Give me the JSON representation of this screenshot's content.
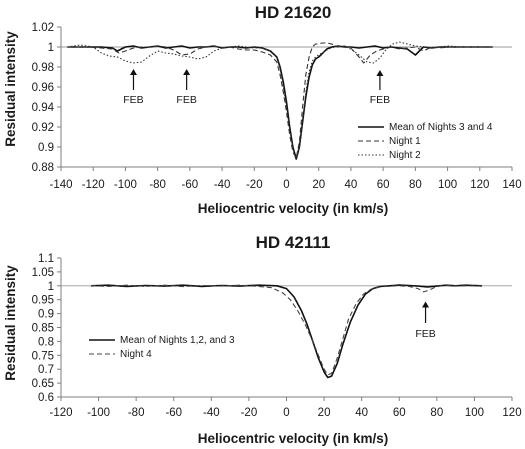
{
  "chart_data": [
    {
      "type": "line",
      "title": "HD 21620",
      "xlabel": "Heliocentric velocity (in km/s)",
      "ylabel": "Residual intensity",
      "xlim": [
        -140,
        140
      ],
      "ylim": [
        0.88,
        1.02
      ],
      "xticks": [
        "-140",
        "-120",
        "-100",
        "-80",
        "-60",
        "-40",
        "-20",
        "0",
        "20",
        "40",
        "60",
        "80",
        "100",
        "120",
        "140"
      ],
      "yticks": [
        "0.88",
        "0.9",
        "0.92",
        "0.94",
        "0.96",
        "0.98",
        "1",
        "1.02"
      ],
      "reference_line": 1,
      "grid": false,
      "legend": "right",
      "series": [
        {
          "name": "Mean of Nights 3 and 4",
          "style": "solid",
          "color": "#111111",
          "x": [
            -136,
            -125,
            -115,
            -108,
            -105,
            -100,
            -95,
            -90,
            -85,
            -80,
            -75,
            -70,
            -65,
            -60,
            -55,
            -50,
            -45,
            -40,
            -35,
            -30,
            -25,
            -20,
            -15,
            -10,
            -6,
            -4,
            -2,
            0,
            2,
            4,
            6,
            8,
            10,
            12,
            14,
            16,
            18,
            20,
            22,
            25,
            28,
            32,
            36,
            40,
            45,
            50,
            55,
            60,
            65,
            70,
            75,
            80,
            85,
            90,
            95,
            100,
            110,
            120,
            128
          ],
          "y": [
            1.0,
            1.0,
            1.0,
            0.999,
            0.996,
            1.0,
            1.001,
            0.999,
            1.0,
            1.001,
            0.999,
            1.0,
            1.001,
            0.999,
            1.0,
            1.0,
            1.001,
            0.999,
            1.0,
            1.0,
            0.999,
            1.0,
            0.999,
            0.996,
            0.99,
            0.98,
            0.965,
            0.945,
            0.92,
            0.9,
            0.888,
            0.9,
            0.925,
            0.95,
            0.97,
            0.982,
            0.988,
            0.99,
            0.993,
            0.998,
            1.0,
            1.001,
            1.0,
            1.0,
            0.999,
            1.0,
            1.001,
            0.999,
            1.0,
            0.999,
            0.998,
            0.992,
            1.0,
            0.999,
            1.0,
            1.0,
            1.0,
            1.0,
            1.0
          ]
        },
        {
          "name": "Night 1",
          "style": "dashed",
          "color": "#333333",
          "x": [
            -136,
            -125,
            -115,
            -108,
            -104,
            -100,
            -95,
            -90,
            -85,
            -80,
            -75,
            -70,
            -65,
            -60,
            -55,
            -50,
            -45,
            -40,
            -35,
            -30,
            -25,
            -20,
            -15,
            -10,
            -6,
            -4,
            -2,
            0,
            2,
            4,
            6,
            8,
            10,
            12,
            14,
            16,
            18,
            20,
            22,
            25,
            28,
            32,
            36,
            40,
            45,
            48,
            52,
            56,
            60,
            65,
            70,
            75,
            80,
            85,
            90,
            95,
            100,
            110,
            120,
            128
          ],
          "y": [
            1.0,
            1.0,
            0.999,
            0.998,
            0.994,
            0.996,
            0.999,
            1.0,
            1.0,
            1.001,
            1.0,
            0.997,
            0.992,
            0.993,
            0.998,
            1.0,
            1.001,
            0.999,
            1.0,
            0.998,
            0.997,
            0.997,
            0.995,
            0.992,
            0.985,
            0.972,
            0.955,
            0.935,
            0.912,
            0.895,
            0.889,
            0.905,
            0.94,
            0.972,
            0.99,
            1.0,
            1.003,
            1.003,
            1.004,
            1.004,
            1.003,
            1.0,
            1.001,
            0.999,
            0.99,
            0.984,
            0.992,
            0.996,
            0.998,
            1.0,
            0.998,
            0.999,
            1.0,
            0.996,
            1.0,
            0.999,
            1.0,
            1.0,
            1.0,
            1.0
          ]
        },
        {
          "name": "Night 2",
          "style": "dotted",
          "color": "#333333",
          "x": [
            -136,
            -128,
            -120,
            -115,
            -110,
            -105,
            -100,
            -95,
            -90,
            -85,
            -80,
            -75,
            -70,
            -65,
            -60,
            -55,
            -50,
            -45,
            -40,
            -35,
            -30,
            -25,
            -20,
            -15,
            -10,
            -6,
            -4,
            -2,
            0,
            2,
            4,
            6,
            8,
            10,
            12,
            14,
            16,
            18,
            22,
            26,
            30,
            35,
            40,
            45,
            50,
            54,
            58,
            62,
            66,
            70,
            75,
            80,
            85,
            90,
            95,
            100,
            110,
            120,
            128
          ],
          "y": [
            1.0,
            1.002,
            1.0,
            0.994,
            0.991,
            0.99,
            0.986,
            0.984,
            0.985,
            0.991,
            0.996,
            0.994,
            0.993,
            0.991,
            0.99,
            0.988,
            0.99,
            0.996,
            0.999,
            1.0,
            1.001,
            1.0,
            0.999,
            0.999,
            0.996,
            0.99,
            0.978,
            0.96,
            0.94,
            0.918,
            0.9,
            0.89,
            0.9,
            0.925,
            0.955,
            0.975,
            0.986,
            0.99,
            0.994,
            0.998,
            1.0,
            1.001,
            0.998,
            0.992,
            0.985,
            0.984,
            0.989,
            0.998,
            1.003,
            1.005,
            1.003,
            1.001,
            1.0,
            0.999,
            1.0,
            1.001,
            1.0,
            1.0,
            1.0
          ]
        }
      ],
      "annotations": [
        {
          "text": "FEB",
          "x": -95,
          "y_arrow_tip": 0.984
        },
        {
          "text": "FEB",
          "x": -62,
          "y_arrow_tip": 0.984
        },
        {
          "text": "FEB",
          "x": 58,
          "y_arrow_tip": 0.983
        }
      ]
    },
    {
      "type": "line",
      "title": "HD 42111",
      "xlabel": "Heliocentric velocity (in km/s)",
      "ylabel": "Residual intensity",
      "xlim": [
        -120,
        120
      ],
      "ylim": [
        0.6,
        1.1
      ],
      "xticks": [
        "-120",
        "-100",
        "-80",
        "-60",
        "-40",
        "-20",
        "0",
        "20",
        "40",
        "60",
        "80",
        "100",
        "120"
      ],
      "yticks": [
        "0.6",
        "0.65",
        "0.7",
        "0.75",
        "0.8",
        "0.85",
        "0.9",
        "0.95",
        "1",
        "1.05",
        "1.1"
      ],
      "reference_line": 1,
      "grid": false,
      "legend": "left",
      "series": [
        {
          "name": "Mean of Nights 1,2, and 3",
          "style": "solid",
          "color": "#111111",
          "x": [
            -104,
            -95,
            -85,
            -75,
            -65,
            -55,
            -45,
            -35,
            -25,
            -15,
            -5,
            0,
            4,
            8,
            11,
            14,
            17,
            20,
            22,
            24,
            27,
            30,
            34,
            38,
            42,
            46,
            50,
            55,
            60,
            65,
            70,
            75,
            80,
            85,
            90,
            95,
            104
          ],
          "y": [
            1.0,
            1.002,
            0.998,
            1.001,
            0.999,
            1.002,
            0.998,
            1.001,
            0.999,
            1.002,
            1.0,
            0.99,
            0.96,
            0.91,
            0.86,
            0.8,
            0.74,
            0.69,
            0.67,
            0.675,
            0.72,
            0.79,
            0.87,
            0.93,
            0.97,
            0.99,
            0.998,
            1.0,
            1.003,
            1.001,
            0.999,
            0.996,
            0.999,
            1.002,
            1.0,
            1.002,
            1.0
          ]
        },
        {
          "name": "Night 4",
          "style": "dashed",
          "color": "#444444",
          "x": [
            -104,
            -95,
            -85,
            -75,
            -65,
            -55,
            -45,
            -35,
            -25,
            -15,
            -8,
            -2,
            2,
            6,
            10,
            14,
            17,
            20,
            22,
            24,
            27,
            30,
            33,
            37,
            41,
            45,
            50,
            55,
            60,
            65,
            70,
            73,
            76,
            80,
            85,
            90,
            95,
            104
          ],
          "y": [
            1.0,
            0.998,
            1.002,
            0.998,
            1.002,
            0.997,
            1.001,
            0.999,
            1.002,
            0.998,
            0.993,
            0.975,
            0.95,
            0.91,
            0.86,
            0.8,
            0.75,
            0.7,
            0.68,
            0.685,
            0.74,
            0.81,
            0.88,
            0.935,
            0.97,
            0.988,
            0.996,
            0.999,
            1.0,
            0.998,
            0.99,
            0.978,
            0.985,
            0.998,
            1.001,
            0.999,
            1.0,
            0.999
          ]
        }
      ],
      "annotations": [
        {
          "text": "FEB",
          "x": 74,
          "y_arrow_tip": 0.965
        }
      ]
    }
  ]
}
